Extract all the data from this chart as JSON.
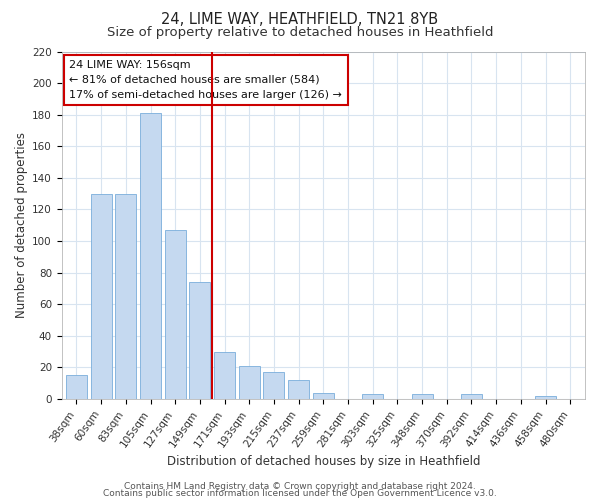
{
  "title": "24, LIME WAY, HEATHFIELD, TN21 8YB",
  "subtitle": "Size of property relative to detached houses in Heathfield",
  "xlabel": "Distribution of detached houses by size in Heathfield",
  "ylabel": "Number of detached properties",
  "bar_labels": [
    "38sqm",
    "60sqm",
    "83sqm",
    "105sqm",
    "127sqm",
    "149sqm",
    "171sqm",
    "193sqm",
    "215sqm",
    "237sqm",
    "259sqm",
    "281sqm",
    "303sqm",
    "325sqm",
    "348sqm",
    "370sqm",
    "392sqm",
    "414sqm",
    "436sqm",
    "458sqm",
    "480sqm"
  ],
  "bar_values": [
    15,
    130,
    130,
    181,
    107,
    74,
    30,
    21,
    17,
    12,
    4,
    0,
    3,
    0,
    3,
    0,
    3,
    0,
    0,
    2,
    0
  ],
  "bar_color": "#c5d9f0",
  "bar_edge_color": "#7aaedb",
  "vline_x": 5.5,
  "vline_color": "#cc0000",
  "ylim": [
    0,
    220
  ],
  "yticks": [
    0,
    20,
    40,
    60,
    80,
    100,
    120,
    140,
    160,
    180,
    200,
    220
  ],
  "annotation_box_text": "24 LIME WAY: 156sqm\n← 81% of detached houses are smaller (584)\n17% of semi-detached houses are larger (126) →",
  "footer_line1": "Contains HM Land Registry data © Crown copyright and database right 2024.",
  "footer_line2": "Contains public sector information licensed under the Open Government Licence v3.0.",
  "bg_color": "#ffffff",
  "plot_bg_color": "#ffffff",
  "grid_color": "#d8e4f0",
  "title_fontsize": 10.5,
  "subtitle_fontsize": 9.5,
  "axis_label_fontsize": 8.5,
  "tick_fontsize": 7.5,
  "annotation_fontsize": 8,
  "footer_fontsize": 6.5
}
